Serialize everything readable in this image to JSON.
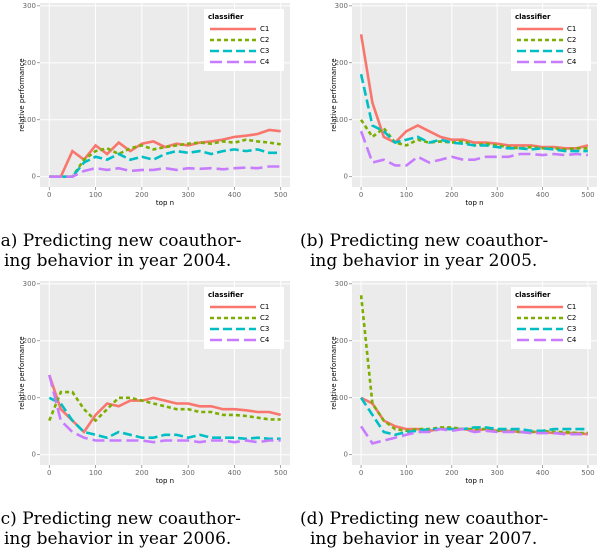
{
  "chart_data": [
    {
      "type": "line",
      "caption": [
        "(a) Predicting new coauthor-",
        "ing behavior in year 2004."
      ],
      "x_label": "top n",
      "y_label": "relative performance",
      "legend_title": "classifier",
      "legend": "top-right",
      "grid": true,
      "x": [
        0,
        25,
        50,
        75,
        100,
        125,
        150,
        175,
        200,
        225,
        250,
        275,
        300,
        325,
        350,
        375,
        400,
        425,
        450,
        475,
        500
      ],
      "xlim": [
        -20,
        520
      ],
      "xticks": [
        0,
        100,
        200,
        300,
        400,
        500
      ],
      "ylim": [
        -18,
        305
      ],
      "yticks": [
        0,
        100,
        200,
        300
      ],
      "series": [
        {
          "name": "C1",
          "color": "#f8766d",
          "dash": "none",
          "values": [
            0,
            0,
            45,
            30,
            55,
            40,
            60,
            45,
            58,
            62,
            52,
            58,
            55,
            60,
            62,
            65,
            70,
            72,
            75,
            82,
            80
          ]
        },
        {
          "name": "C2",
          "color": "#7cae00",
          "dash": "4 3",
          "values": [
            0,
            0,
            0,
            30,
            45,
            50,
            40,
            50,
            55,
            48,
            52,
            55,
            58,
            60,
            58,
            62,
            60,
            65,
            62,
            60,
            57
          ]
        },
        {
          "name": "C3",
          "color": "#00bfc4",
          "dash": "9 4",
          "values": [
            0,
            0,
            0,
            25,
            35,
            30,
            40,
            30,
            35,
            30,
            40,
            45,
            42,
            45,
            40,
            45,
            48,
            45,
            48,
            42,
            42
          ]
        },
        {
          "name": "C4",
          "color": "#c77cff",
          "dash": "12 5",
          "values": [
            0,
            0,
            0,
            10,
            15,
            12,
            15,
            10,
            12,
            12,
            15,
            12,
            15,
            14,
            15,
            13,
            15,
            16,
            15,
            18,
            18
          ]
        }
      ]
    },
    {
      "type": "line",
      "caption": [
        "(b) Predicting new coauthor-",
        "ing behavior in year 2005."
      ],
      "x_label": "top n",
      "y_label": "relative performance",
      "legend_title": "classifier",
      "legend": "top-right",
      "grid": true,
      "x": [
        0,
        25,
        50,
        75,
        100,
        125,
        150,
        175,
        200,
        225,
        250,
        275,
        300,
        325,
        350,
        375,
        400,
        425,
        450,
        475,
        500
      ],
      "xlim": [
        -20,
        520
      ],
      "xticks": [
        0,
        100,
        200,
        300,
        400,
        500
      ],
      "ylim": [
        -18,
        305
      ],
      "yticks": [
        0,
        100,
        200,
        300
      ],
      "series": [
        {
          "name": "C1",
          "color": "#f8766d",
          "dash": "none",
          "values": [
            250,
            130,
            70,
            60,
            80,
            90,
            80,
            70,
            65,
            65,
            60,
            60,
            58,
            55,
            55,
            55,
            52,
            52,
            50,
            50,
            55
          ]
        },
        {
          "name": "C2",
          "color": "#7cae00",
          "dash": "4 3",
          "values": [
            100,
            70,
            85,
            60,
            55,
            65,
            60,
            62,
            60,
            62,
            55,
            58,
            55,
            52,
            50,
            52,
            50,
            50,
            48,
            50,
            50
          ]
        },
        {
          "name": "C3",
          "color": "#00bfc4",
          "dash": "9 4",
          "values": [
            180,
            90,
            80,
            60,
            65,
            70,
            60,
            65,
            60,
            58,
            55,
            55,
            52,
            50,
            50,
            48,
            50,
            48,
            45,
            45,
            45
          ]
        },
        {
          "name": "C4",
          "color": "#c77cff",
          "dash": "12 5",
          "values": [
            80,
            25,
            30,
            20,
            20,
            35,
            25,
            30,
            35,
            30,
            30,
            35,
            35,
            35,
            40,
            40,
            38,
            40,
            38,
            40,
            38
          ]
        }
      ]
    },
    {
      "type": "line",
      "caption": [
        "(c) Predicting new coauthor-",
        "ing behavior in year 2006."
      ],
      "x_label": "top n",
      "y_label": "relative performance",
      "legend_title": "classifier",
      "legend": "top-right",
      "grid": true,
      "x": [
        0,
        25,
        50,
        75,
        100,
        125,
        150,
        175,
        200,
        225,
        250,
        275,
        300,
        325,
        350,
        375,
        400,
        425,
        450,
        475,
        500
      ],
      "xlim": [
        -20,
        520
      ],
      "xticks": [
        0,
        100,
        200,
        300,
        400,
        500
      ],
      "ylim": [
        -18,
        305
      ],
      "yticks": [
        0,
        100,
        200,
        300
      ],
      "series": [
        {
          "name": "C1",
          "color": "#f8766d",
          "dash": "none",
          "values": [
            140,
            80,
            60,
            40,
            70,
            90,
            85,
            95,
            95,
            100,
            95,
            90,
            90,
            85,
            85,
            80,
            80,
            78,
            75,
            75,
            70
          ]
        },
        {
          "name": "C2",
          "color": "#7cae00",
          "dash": "4 3",
          "values": [
            60,
            110,
            110,
            80,
            60,
            80,
            100,
            100,
            95,
            90,
            85,
            80,
            80,
            75,
            75,
            70,
            70,
            68,
            65,
            62,
            62
          ]
        },
        {
          "name": "C3",
          "color": "#00bfc4",
          "dash": "9 4",
          "values": [
            100,
            90,
            60,
            40,
            35,
            30,
            40,
            35,
            30,
            30,
            35,
            35,
            30,
            35,
            30,
            30,
            30,
            28,
            30,
            28,
            28
          ]
        },
        {
          "name": "C4",
          "color": "#c77cff",
          "dash": "12 5",
          "values": [
            140,
            60,
            40,
            30,
            25,
            25,
            25,
            25,
            25,
            22,
            25,
            25,
            25,
            22,
            25,
            25,
            22,
            25,
            22,
            25,
            25
          ]
        }
      ]
    },
    {
      "type": "line",
      "caption": [
        "(d) Predicting new coauthor-",
        "ing behavior in year 2007."
      ],
      "x_label": "top n",
      "y_label": "relative performance",
      "legend_title": "classifier",
      "legend": "top-right",
      "grid": true,
      "x": [
        0,
        25,
        50,
        75,
        100,
        125,
        150,
        175,
        200,
        225,
        250,
        275,
        300,
        325,
        350,
        375,
        400,
        425,
        450,
        475,
        500
      ],
      "xlim": [
        -20,
        520
      ],
      "xticks": [
        0,
        100,
        200,
        300,
        400,
        500
      ],
      "ylim": [
        -18,
        305
      ],
      "yticks": [
        0,
        100,
        200,
        300
      ],
      "series": [
        {
          "name": "C1",
          "color": "#f8766d",
          "dash": "none",
          "values": [
            100,
            90,
            60,
            50,
            45,
            45,
            42,
            45,
            45,
            45,
            42,
            45,
            42,
            42,
            40,
            40,
            40,
            38,
            38,
            38,
            36
          ]
        },
        {
          "name": "C2",
          "color": "#7cae00",
          "dash": "4 3",
          "values": [
            280,
            90,
            60,
            45,
            42,
            45,
            45,
            48,
            48,
            45,
            45,
            45,
            42,
            42,
            40,
            40,
            42,
            40,
            40,
            38,
            38
          ]
        },
        {
          "name": "C3",
          "color": "#00bfc4",
          "dash": "9 4",
          "values": [
            100,
            70,
            40,
            35,
            40,
            42,
            45,
            45,
            45,
            45,
            48,
            48,
            45,
            45,
            45,
            42,
            42,
            45,
            45,
            45,
            45
          ]
        },
        {
          "name": "C4",
          "color": "#c77cff",
          "dash": "12 5",
          "values": [
            50,
            20,
            25,
            30,
            35,
            40,
            40,
            45,
            42,
            45,
            40,
            42,
            40,
            40,
            40,
            38,
            38,
            38,
            36,
            36,
            36
          ]
        }
      ]
    }
  ]
}
